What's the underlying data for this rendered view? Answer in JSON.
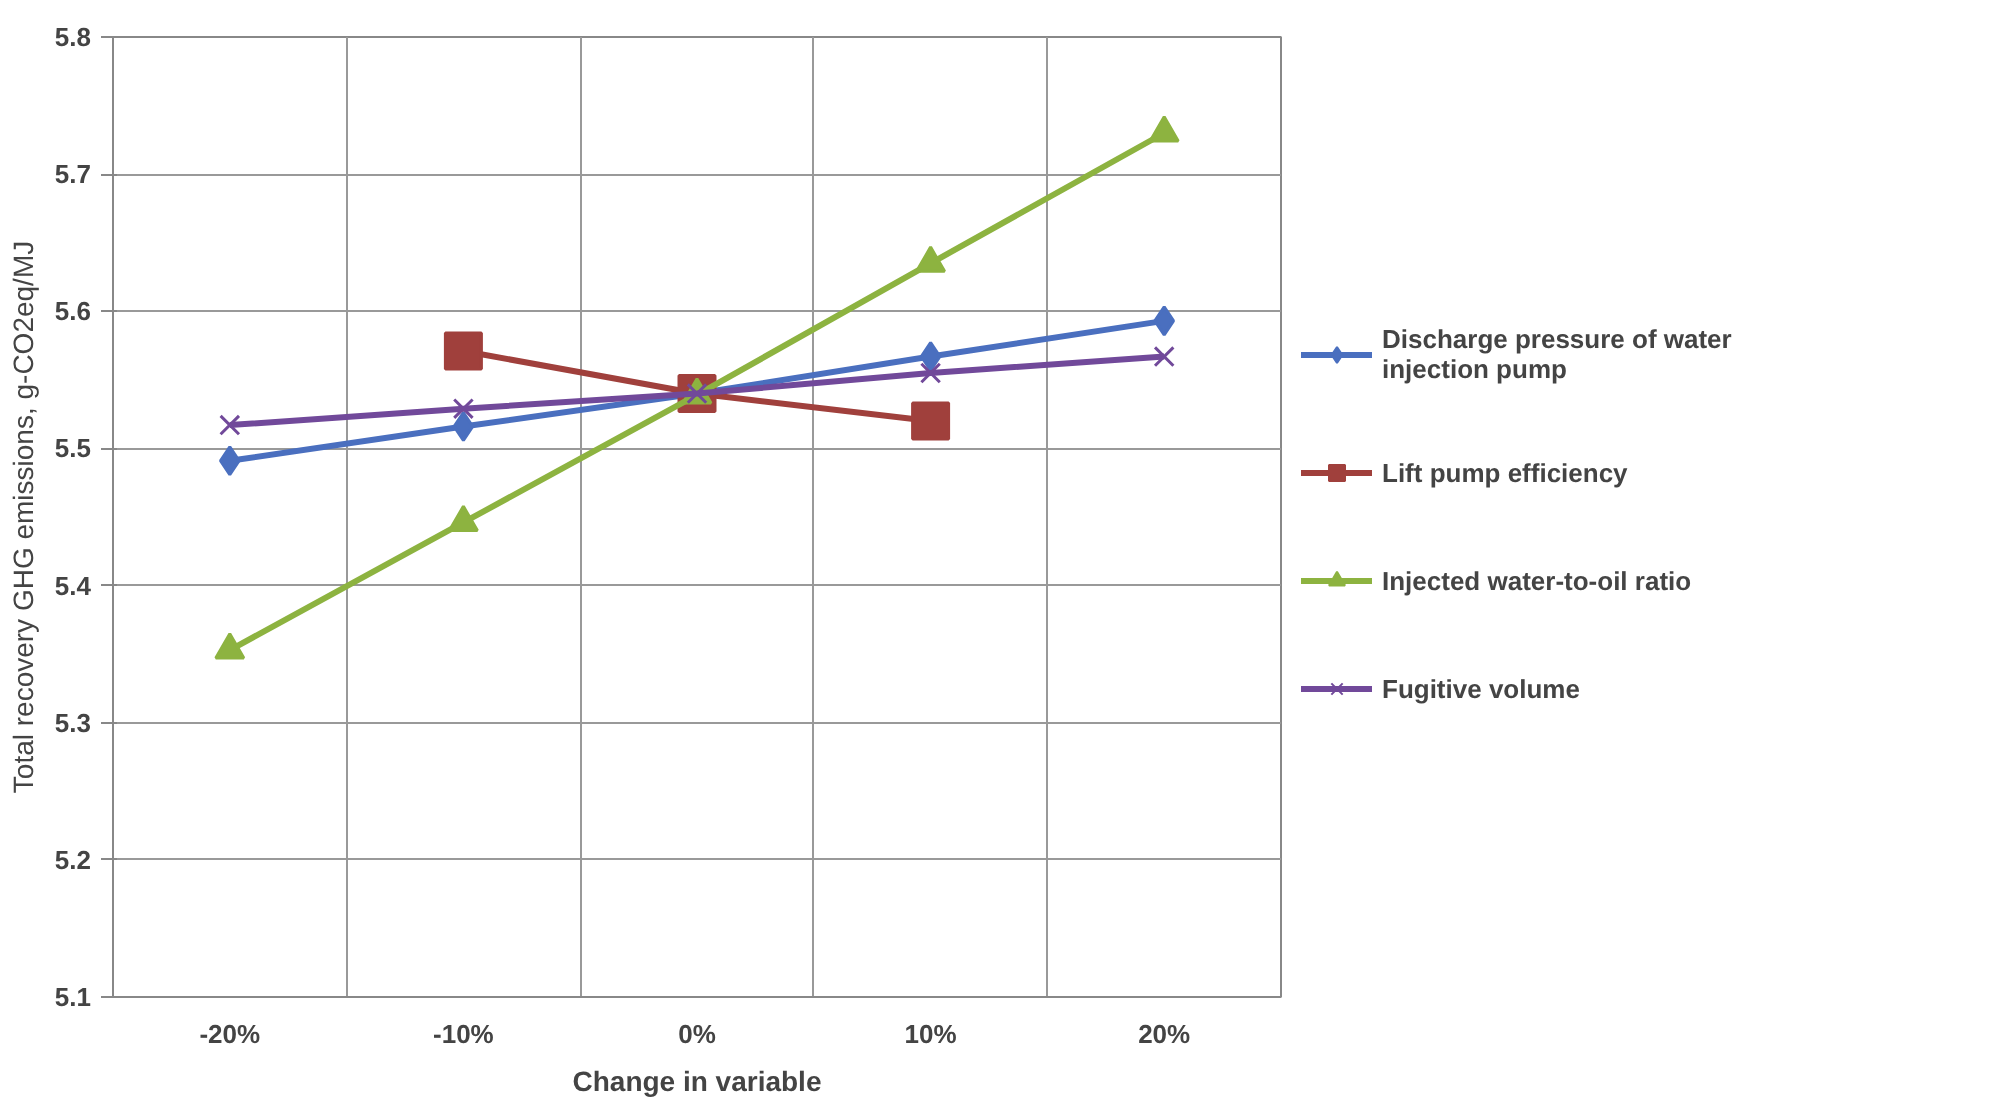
{
  "chart_data": {
    "type": "line",
    "xlabel": "Change in variable",
    "ylabel": "Total recovery GHG emissions, g-CO2eq/MJ",
    "categories": [
      "-20%",
      "-10%",
      "0%",
      "10%",
      "20%"
    ],
    "ylim": [
      5.1,
      5.8
    ],
    "yticks": [
      5.1,
      5.2,
      5.3,
      5.4,
      5.5,
      5.6,
      5.7,
      5.8
    ],
    "grid": true,
    "legend": "right",
    "series": [
      {
        "name": "Discharge pressure of water injection pump",
        "color": "#4a6fbf",
        "marker": "diamond",
        "values": [
          5.491,
          5.516,
          5.54,
          5.567,
          5.593
        ]
      },
      {
        "name": "Lift pump efficiency",
        "color": "#a0403c",
        "marker": "square",
        "values": [
          null,
          5.571,
          5.54,
          5.52,
          null
        ]
      },
      {
        "name": "Injected water-to-oil ratio",
        "color": "#8db340",
        "marker": "triangle",
        "values": [
          5.353,
          5.446,
          5.539,
          5.635,
          5.73
        ]
      },
      {
        "name": "Fugitive volume",
        "color": "#71499a",
        "marker": "cross",
        "values": [
          5.517,
          5.529,
          5.54,
          5.555,
          5.567
        ]
      }
    ]
  }
}
